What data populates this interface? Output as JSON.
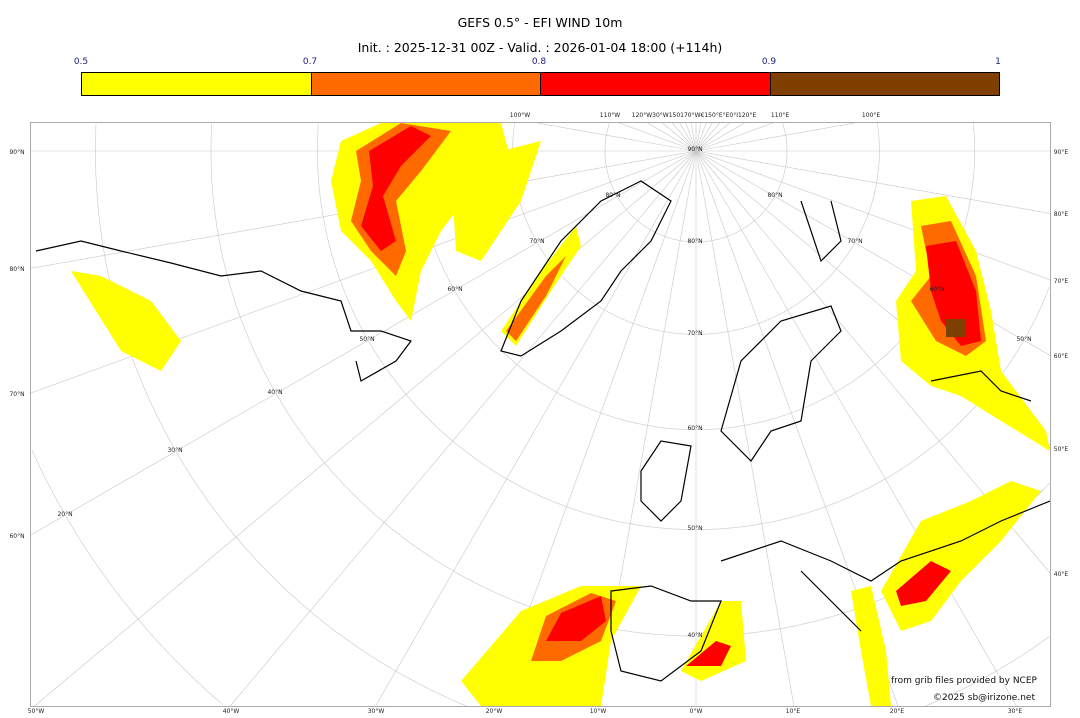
{
  "title": "GEFS 0.5° - EFI WIND 10m",
  "subtitle": "Init. : 2025-12-31 00Z - Valid. : 2026-01-04 18:00 (+114h)",
  "colorbar": {
    "ticks": [
      "0.5",
      "0.7",
      "0.8",
      "0.9",
      "1"
    ],
    "bins": [
      {
        "from": 0.5,
        "to": 0.7,
        "color": "#ffff00"
      },
      {
        "from": 0.7,
        "to": 0.8,
        "color": "#ff6a00"
      },
      {
        "from": 0.8,
        "to": 0.9,
        "color": "#ff0000"
      },
      {
        "from": 0.9,
        "to": 1.0,
        "color": "#7f3f00"
      }
    ]
  },
  "map": {
    "projection": "polar stereographic",
    "grid": true,
    "bottom_labels": [
      "50°W",
      "40°W",
      "30°W",
      "20°W",
      "10°W",
      "0°W",
      "10°E",
      "20°E",
      "30°E"
    ],
    "top_labels": [
      "100°W",
      "110°W",
      "120°W30°W150170°W€150°E°E0°I120°E",
      "110°E",
      "100°E"
    ],
    "left_labels": [
      "90°N",
      "80°N",
      "70°N",
      "60°N"
    ],
    "right_labels": [
      "90°E",
      "80°E",
      "70°E",
      "60°E",
      "50°E",
      "40°E"
    ],
    "interior_lat_labels": [
      "90°N",
      "80°N",
      "70°N",
      "60°N",
      "50°N",
      "40°N",
      "30°N",
      "20°N",
      "80°N",
      "70°N",
      "60°N",
      "50°N",
      "40°N",
      "80°N",
      "70°N",
      "60°N",
      "50°N"
    ]
  },
  "credits": {
    "source": "from grib files provided by NCEP",
    "copyright": "©2025 sb@irizone.net"
  }
}
